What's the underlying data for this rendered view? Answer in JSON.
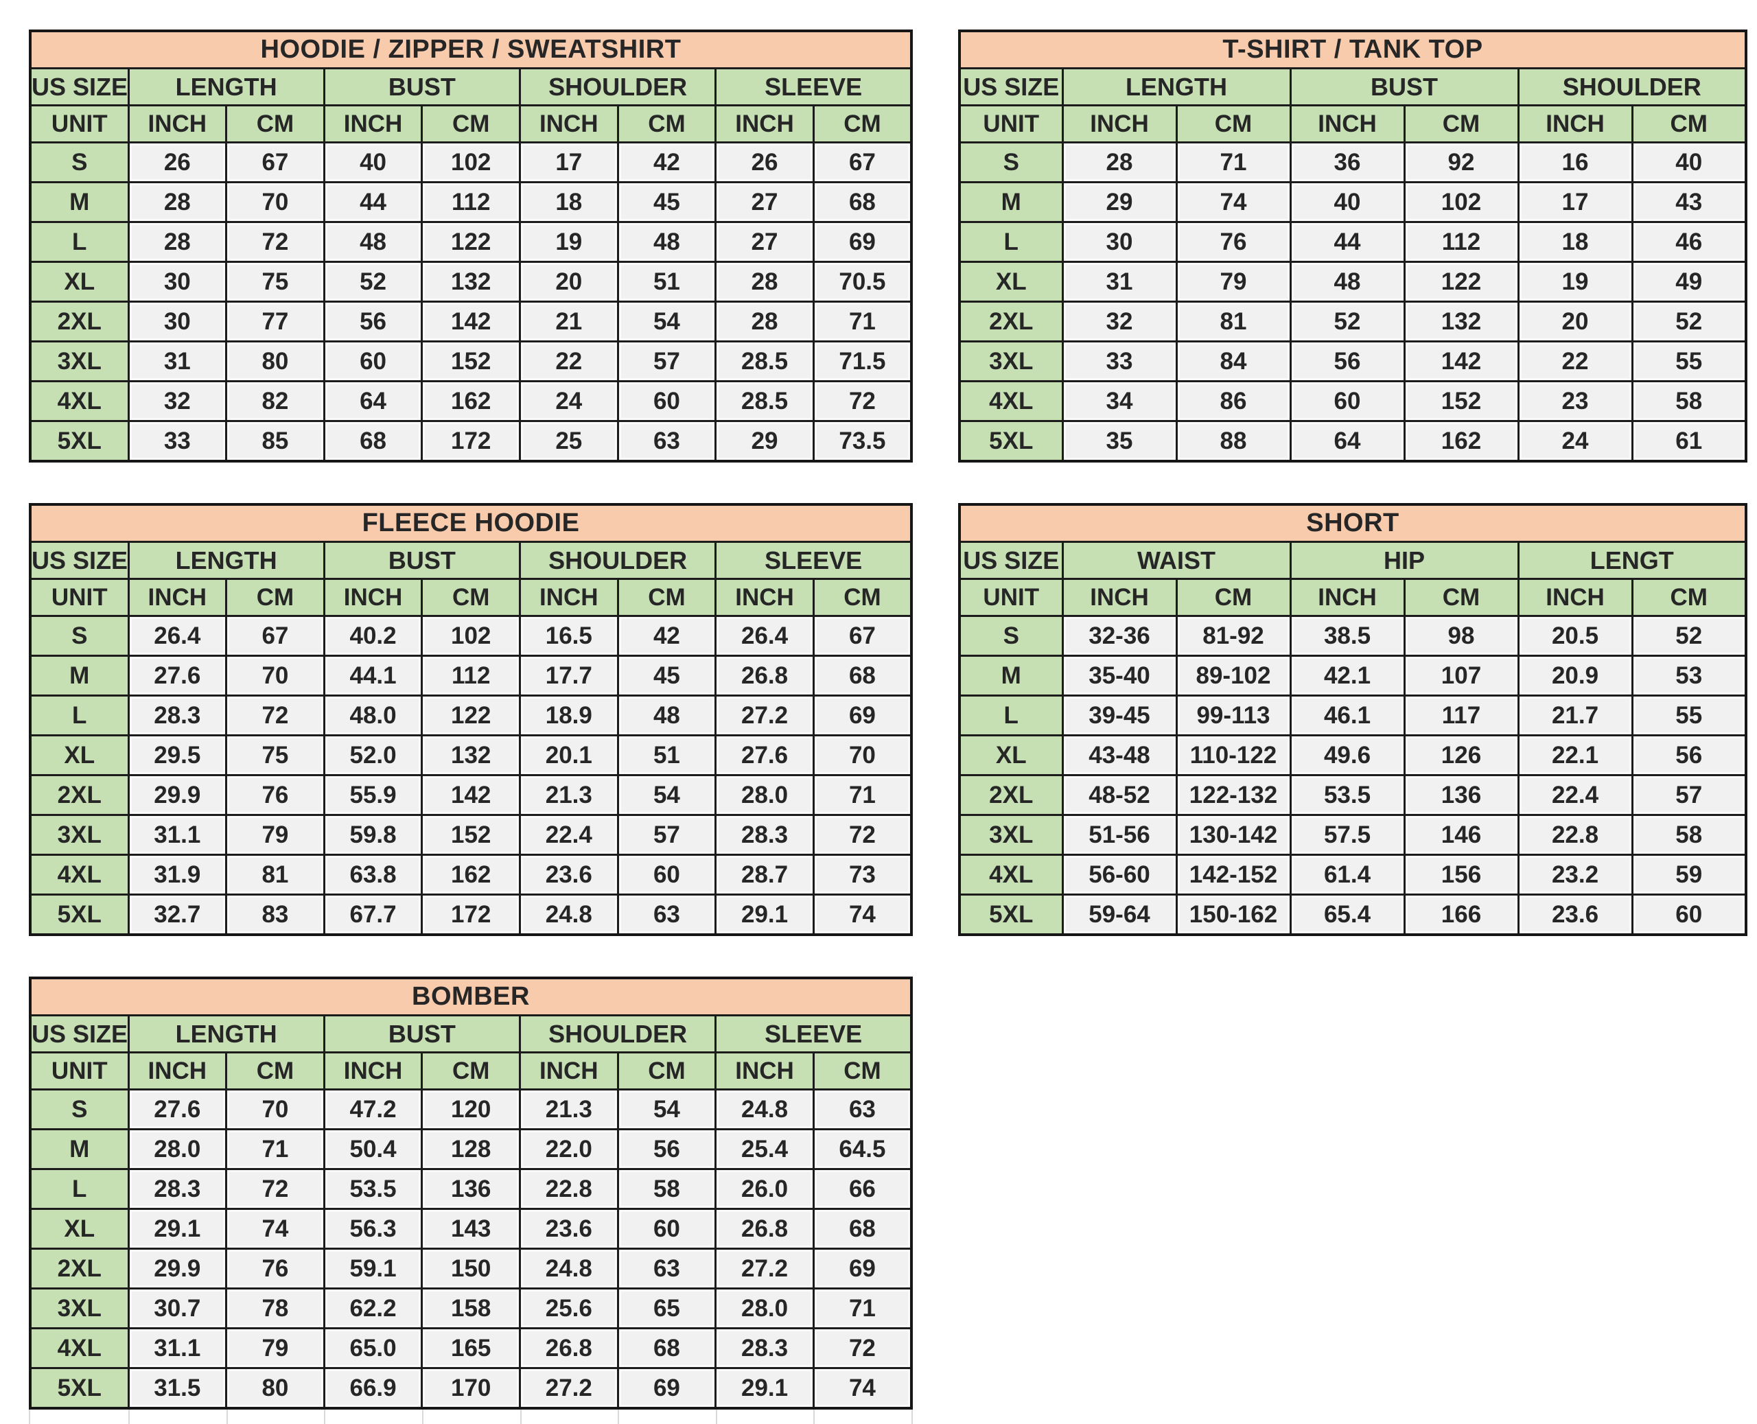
{
  "page": {
    "background": "#ffffff",
    "description": "Clothing size chart sheet with five measurement tables"
  },
  "colors": {
    "title_bg": "#f8cbad",
    "header_bg": "#c6e0b4",
    "cell_bg": "#f1f1f1",
    "border": "#1c1c1c",
    "text": "#262626"
  },
  "tables": [
    {
      "name": "hoodie-zipper-sweatshirt",
      "title": "HOODIE / ZIPPER / SWEATSHIRT",
      "size_header": "US SIZE",
      "unit_header": "UNIT",
      "measures": [
        "LENGTH",
        "BUST",
        "SHOULDER",
        "SLEEVE"
      ],
      "units": [
        "INCH",
        "CM"
      ],
      "rows": [
        {
          "size": "S",
          "values": [
            "26",
            "67",
            "40",
            "102",
            "17",
            "42",
            "26",
            "67"
          ]
        },
        {
          "size": "M",
          "values": [
            "28",
            "70",
            "44",
            "112",
            "18",
            "45",
            "27",
            "68"
          ]
        },
        {
          "size": "L",
          "values": [
            "28",
            "72",
            "48",
            "122",
            "19",
            "48",
            "27",
            "69"
          ]
        },
        {
          "size": "XL",
          "values": [
            "30",
            "75",
            "52",
            "132",
            "20",
            "51",
            "28",
            "70.5"
          ]
        },
        {
          "size": "2XL",
          "values": [
            "30",
            "77",
            "56",
            "142",
            "21",
            "54",
            "28",
            "71"
          ]
        },
        {
          "size": "3XL",
          "values": [
            "31",
            "80",
            "60",
            "152",
            "22",
            "57",
            "28.5",
            "71.5"
          ]
        },
        {
          "size": "4XL",
          "values": [
            "32",
            "82",
            "64",
            "162",
            "24",
            "60",
            "28.5",
            "72"
          ]
        },
        {
          "size": "5XL",
          "values": [
            "33",
            "85",
            "68",
            "172",
            "25",
            "63",
            "29",
            "73.5"
          ]
        }
      ]
    },
    {
      "name": "t-shirt-tank-top",
      "title": "T-SHIRT / TANK TOP",
      "size_header": "US SIZE",
      "unit_header": "UNIT",
      "measures": [
        "LENGTH",
        "BUST",
        "SHOULDER"
      ],
      "units": [
        "INCH",
        "CM"
      ],
      "rows": [
        {
          "size": "S",
          "values": [
            "28",
            "71",
            "36",
            "92",
            "16",
            "40"
          ]
        },
        {
          "size": "M",
          "values": [
            "29",
            "74",
            "40",
            "102",
            "17",
            "43"
          ]
        },
        {
          "size": "L",
          "values": [
            "30",
            "76",
            "44",
            "112",
            "18",
            "46"
          ]
        },
        {
          "size": "XL",
          "values": [
            "31",
            "79",
            "48",
            "122",
            "19",
            "49"
          ]
        },
        {
          "size": "2XL",
          "values": [
            "32",
            "81",
            "52",
            "132",
            "20",
            "52"
          ]
        },
        {
          "size": "3XL",
          "values": [
            "33",
            "84",
            "56",
            "142",
            "22",
            "55"
          ]
        },
        {
          "size": "4XL",
          "values": [
            "34",
            "86",
            "60",
            "152",
            "23",
            "58"
          ]
        },
        {
          "size": "5XL",
          "values": [
            "35",
            "88",
            "64",
            "162",
            "24",
            "61"
          ]
        }
      ]
    },
    {
      "name": "fleece-hoodie",
      "title": "FLEECE HOODIE",
      "size_header": "US SIZE",
      "unit_header": "UNIT",
      "measures": [
        "LENGTH",
        "BUST",
        "SHOULDER",
        "SLEEVE"
      ],
      "units": [
        "INCH",
        "CM"
      ],
      "rows": [
        {
          "size": "S",
          "values": [
            "26.4",
            "67",
            "40.2",
            "102",
            "16.5",
            "42",
            "26.4",
            "67"
          ]
        },
        {
          "size": "M",
          "values": [
            "27.6",
            "70",
            "44.1",
            "112",
            "17.7",
            "45",
            "26.8",
            "68"
          ]
        },
        {
          "size": "L",
          "values": [
            "28.3",
            "72",
            "48.0",
            "122",
            "18.9",
            "48",
            "27.2",
            "69"
          ]
        },
        {
          "size": "XL",
          "values": [
            "29.5",
            "75",
            "52.0",
            "132",
            "20.1",
            "51",
            "27.6",
            "70"
          ]
        },
        {
          "size": "2XL",
          "values": [
            "29.9",
            "76",
            "55.9",
            "142",
            "21.3",
            "54",
            "28.0",
            "71"
          ]
        },
        {
          "size": "3XL",
          "values": [
            "31.1",
            "79",
            "59.8",
            "152",
            "22.4",
            "57",
            "28.3",
            "72"
          ]
        },
        {
          "size": "4XL",
          "values": [
            "31.9",
            "81",
            "63.8",
            "162",
            "23.6",
            "60",
            "28.7",
            "73"
          ]
        },
        {
          "size": "5XL",
          "values": [
            "32.7",
            "83",
            "67.7",
            "172",
            "24.8",
            "63",
            "29.1",
            "74"
          ]
        }
      ]
    },
    {
      "name": "short",
      "title": "SHORT",
      "size_header": "US SIZE",
      "unit_header": "UNIT",
      "measures": [
        "WAIST",
        "HIP",
        "LENGT"
      ],
      "units": [
        "INCH",
        "CM"
      ],
      "rows": [
        {
          "size": "S",
          "values": [
            "32-36",
            "81-92",
            "38.5",
            "98",
            "20.5",
            "52"
          ]
        },
        {
          "size": "M",
          "values": [
            "35-40",
            "89-102",
            "42.1",
            "107",
            "20.9",
            "53"
          ]
        },
        {
          "size": "L",
          "values": [
            "39-45",
            "99-113",
            "46.1",
            "117",
            "21.7",
            "55"
          ]
        },
        {
          "size": "XL",
          "values": [
            "43-48",
            "110-122",
            "49.6",
            "126",
            "22.1",
            "56"
          ]
        },
        {
          "size": "2XL",
          "values": [
            "48-52",
            "122-132",
            "53.5",
            "136",
            "22.4",
            "57"
          ]
        },
        {
          "size": "3XL",
          "values": [
            "51-56",
            "130-142",
            "57.5",
            "146",
            "22.8",
            "58"
          ]
        },
        {
          "size": "4XL",
          "values": [
            "56-60",
            "142-152",
            "61.4",
            "156",
            "23.2",
            "59"
          ]
        },
        {
          "size": "5XL",
          "values": [
            "59-64",
            "150-162",
            "65.4",
            "166",
            "23.6",
            "60"
          ]
        }
      ]
    },
    {
      "name": "bomber",
      "title": "BOMBER",
      "size_header": "US SIZE",
      "unit_header": "UNIT",
      "measures": [
        "LENGTH",
        "BUST",
        "SHOULDER",
        "SLEEVE"
      ],
      "units": [
        "INCH",
        "CM"
      ],
      "trailing_blank_row": true,
      "rows": [
        {
          "size": "S",
          "values": [
            "27.6",
            "70",
            "47.2",
            "120",
            "21.3",
            "54",
            "24.8",
            "63"
          ]
        },
        {
          "size": "M",
          "values": [
            "28.0",
            "71",
            "50.4",
            "128",
            "22.0",
            "56",
            "25.4",
            "64.5"
          ]
        },
        {
          "size": "L",
          "values": [
            "28.3",
            "72",
            "53.5",
            "136",
            "22.8",
            "58",
            "26.0",
            "66"
          ]
        },
        {
          "size": "XL",
          "values": [
            "29.1",
            "74",
            "56.3",
            "143",
            "23.6",
            "60",
            "26.8",
            "68"
          ]
        },
        {
          "size": "2XL",
          "values": [
            "29.9",
            "76",
            "59.1",
            "150",
            "24.8",
            "63",
            "27.2",
            "69"
          ]
        },
        {
          "size": "3XL",
          "values": [
            "30.7",
            "78",
            "62.2",
            "158",
            "25.6",
            "65",
            "28.0",
            "71"
          ]
        },
        {
          "size": "4XL",
          "values": [
            "31.1",
            "79",
            "65.0",
            "165",
            "26.8",
            "68",
            "28.3",
            "72"
          ]
        },
        {
          "size": "5XL",
          "values": [
            "31.5",
            "80",
            "66.9",
            "170",
            "27.2",
            "69",
            "29.1",
            "74"
          ]
        }
      ]
    }
  ]
}
